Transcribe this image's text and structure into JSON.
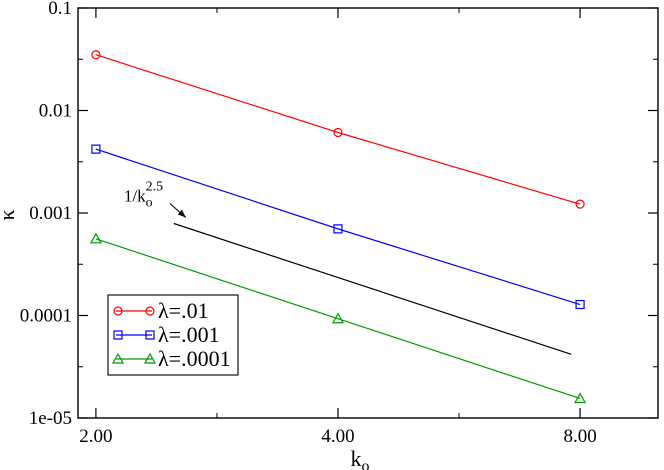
{
  "chart_data": {
    "type": "line",
    "title": "",
    "xlabel": "k",
    "xlabel_subscript": "o",
    "ylabel": "κ",
    "x_scale": "log",
    "y_scale": "log",
    "xlim": [
      1.9,
      10.0
    ],
    "ylim": [
      1e-05,
      0.1
    ],
    "x_ticks": [
      2.0,
      4.0,
      8.0
    ],
    "x_tick_labels": [
      "2.00",
      "4.00",
      "8.00"
    ],
    "y_ticks": [
      1e-05,
      0.0001,
      0.001,
      0.01,
      0.1
    ],
    "y_tick_labels": [
      "1e-05",
      "0.0001",
      "0.001",
      "0.01",
      "0.1"
    ],
    "grid": false,
    "legend_position": "bottom-left",
    "series": [
      {
        "name": "λ=.01",
        "color": "#ff0000",
        "marker": "circle",
        "x": [
          2.0,
          4.0,
          8.0
        ],
        "y": [
          0.035,
          0.0061,
          0.00122
        ]
      },
      {
        "name": "λ=.001",
        "color": "#0000ff",
        "marker": "square",
        "x": [
          2.0,
          4.0,
          8.0
        ],
        "y": [
          0.0042,
          0.0007,
          0.000128
        ]
      },
      {
        "name": "λ=.0001",
        "color": "#009900",
        "marker": "triangle",
        "x": [
          2.0,
          4.0,
          8.0
        ],
        "y": [
          0.00056,
          9.3e-05,
          1.55e-05
        ]
      }
    ],
    "reference_line": {
      "color": "#000000",
      "x": [
        2.5,
        7.8
      ],
      "y": [
        0.00079,
        4.18e-05
      ],
      "annotation": {
        "text": "1/k",
        "subscript": "o",
        "superscript": "2.5"
      }
    }
  }
}
